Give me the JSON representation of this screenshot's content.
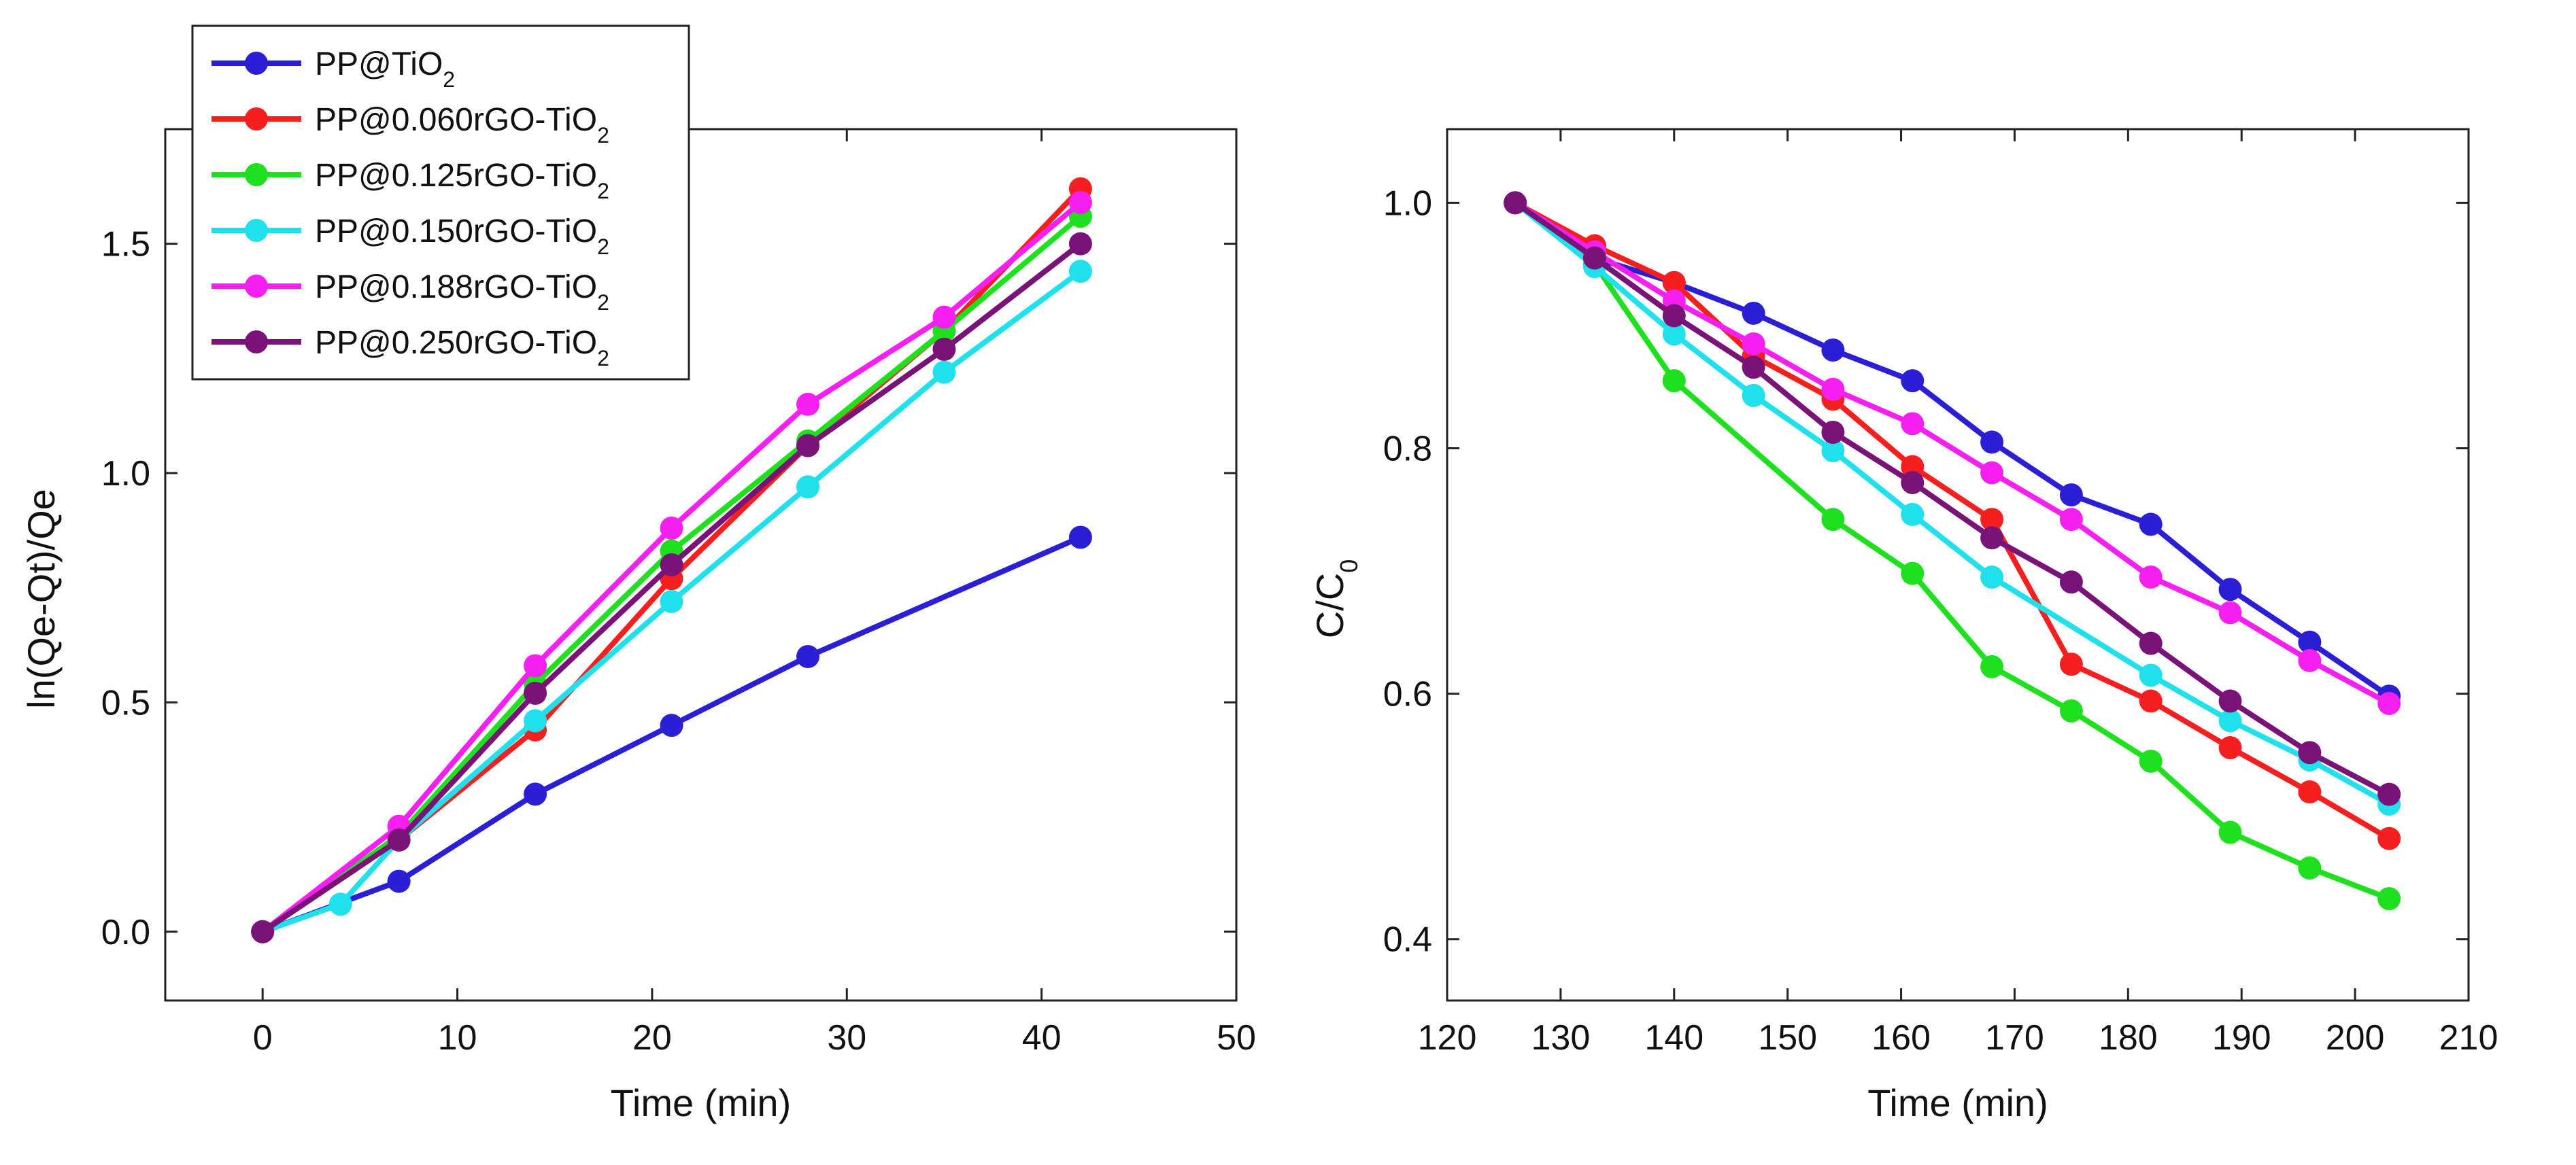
{
  "chart_data": [
    {
      "type": "line",
      "xlabel": "Time (min)",
      "ylabel": "ln(Qe-Qt)/Qe",
      "xlim": [
        -5,
        50
      ],
      "ylim": [
        -0.15,
        1.75
      ],
      "xticks": [
        0,
        10,
        20,
        30,
        40,
        50
      ],
      "yticks": [
        0.0,
        0.5,
        1.0,
        1.5
      ],
      "xtick_labels": [
        "0",
        "10",
        "20",
        "30",
        "40",
        "50"
      ],
      "ytick_labels": [
        "0.0",
        "0.5",
        "1.0",
        "1.5"
      ],
      "legend_placement": "top-left, outside frame",
      "series": [
        {
          "name": "PP@TiO",
          "sub": "2",
          "color": "#2a1fd4",
          "x": [
            0,
            7,
            14,
            21,
            28,
            42
          ],
          "y": [
            0.0,
            0.11,
            0.3,
            0.45,
            0.6,
            0.86
          ]
        },
        {
          "name": "PP@0.060rGO-TiO",
          "sub": "2",
          "color": "#f51f1f",
          "x": [
            0,
            7,
            14,
            21,
            28,
            35,
            42
          ],
          "y": [
            0.0,
            0.2,
            0.44,
            0.77,
            1.06,
            1.31,
            1.62
          ]
        },
        {
          "name": "PP@0.125rGO-TiO",
          "sub": "2",
          "color": "#1fe01f",
          "x": [
            0,
            7,
            14,
            21,
            28,
            35,
            42
          ],
          "y": [
            0.0,
            0.21,
            0.54,
            0.83,
            1.07,
            1.31,
            1.56
          ]
        },
        {
          "name": "PP@0.150rGO-TiO",
          "sub": "2",
          "color": "#1fe0eb",
          "x": [
            0,
            4,
            7,
            14,
            21,
            28,
            35,
            42
          ],
          "y": [
            0.0,
            0.06,
            0.2,
            0.46,
            0.72,
            0.97,
            1.22,
            1.44
          ]
        },
        {
          "name": "PP@0.188rGO-TiO",
          "sub": "2",
          "color": "#f51ff0",
          "x": [
            0,
            7,
            14,
            21,
            28,
            35,
            42
          ],
          "y": [
            0.0,
            0.23,
            0.58,
            0.88,
            1.15,
            1.34,
            1.59
          ]
        },
        {
          "name": "PP@0.250rGO-TiO",
          "sub": "2",
          "color": "#7a1378",
          "x": [
            0,
            7,
            14,
            21,
            28,
            35,
            42
          ],
          "y": [
            0.0,
            0.2,
            0.52,
            0.8,
            1.06,
            1.27,
            1.5
          ]
        }
      ]
    },
    {
      "type": "line",
      "xlabel": "Time (min)",
      "ylabel": "C/C",
      "ylabel_sub": "0",
      "xlim": [
        120,
        210
      ],
      "ylim": [
        0.35,
        1.06
      ],
      "xticks": [
        120,
        130,
        140,
        150,
        160,
        170,
        180,
        190,
        200,
        210
      ],
      "yticks": [
        0.4,
        0.6,
        0.8,
        1.0
      ],
      "xtick_labels": [
        "120",
        "130",
        "140",
        "150",
        "160",
        "170",
        "180",
        "190",
        "200",
        "210"
      ],
      "ytick_labels": [
        "0.4",
        "0.6",
        "0.8",
        "1.0"
      ],
      "series": [
        {
          "name": "PP@TiO2",
          "color": "#2a1fd4",
          "x": [
            126,
            133,
            140,
            147,
            154,
            161,
            168,
            175,
            182,
            189,
            196,
            203
          ],
          "y": [
            1.0,
            0.955,
            0.935,
            0.91,
            0.88,
            0.855,
            0.805,
            0.762,
            0.738,
            0.685,
            0.642,
            0.598
          ]
        },
        {
          "name": "PP@0.060rGO-TiO2",
          "color": "#f51f1f",
          "x": [
            126,
            133,
            140,
            147,
            154,
            161,
            168,
            175,
            182,
            189,
            196,
            203
          ],
          "y": [
            1.0,
            0.965,
            0.935,
            0.875,
            0.84,
            0.785,
            0.742,
            0.624,
            0.594,
            0.556,
            0.52,
            0.482
          ]
        },
        {
          "name": "PP@0.125rGO-TiO2",
          "color": "#1fe01f",
          "x": [
            126,
            133,
            140,
            154,
            161,
            168,
            175,
            182,
            189,
            196,
            203
          ],
          "y": [
            1.0,
            0.95,
            0.855,
            0.742,
            0.698,
            0.622,
            0.586,
            0.545,
            0.487,
            0.458,
            0.433
          ]
        },
        {
          "name": "PP@0.150rGO-TiO2",
          "color": "#1fe0eb",
          "x": [
            126,
            133,
            140,
            147,
            154,
            161,
            168,
            182,
            189,
            196,
            203
          ],
          "y": [
            1.0,
            0.948,
            0.893,
            0.843,
            0.798,
            0.746,
            0.695,
            0.615,
            0.578,
            0.546,
            0.51
          ]
        },
        {
          "name": "PP@0.188rGO-TiO2",
          "color": "#f51ff0",
          "x": [
            126,
            133,
            140,
            147,
            154,
            161,
            168,
            175,
            182,
            189,
            196,
            203
          ],
          "y": [
            1.0,
            0.96,
            0.92,
            0.885,
            0.848,
            0.82,
            0.78,
            0.742,
            0.695,
            0.666,
            0.627,
            0.592
          ]
        },
        {
          "name": "PP@0.250rGO-TiO2",
          "color": "#7a1378",
          "x": [
            126,
            133,
            140,
            147,
            154,
            161,
            168,
            175,
            182,
            189,
            196,
            203
          ],
          "y": [
            1.0,
            0.955,
            0.908,
            0.866,
            0.813,
            0.772,
            0.727,
            0.691,
            0.641,
            0.594,
            0.552,
            0.518
          ]
        }
      ]
    }
  ]
}
